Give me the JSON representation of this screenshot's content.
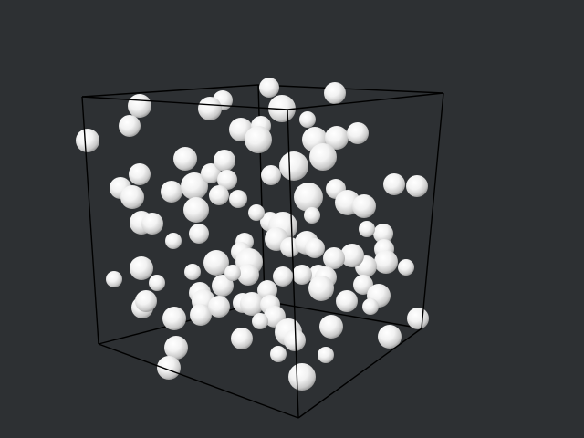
{
  "scene": {
    "background_color": "#2d3033",
    "edge_color": "#000000",
    "particle_color": "#ffffff",
    "particle_shading": "radial-gradient-sphere",
    "container_shape": "cube-wireframe",
    "particle_count": 100
  }
}
